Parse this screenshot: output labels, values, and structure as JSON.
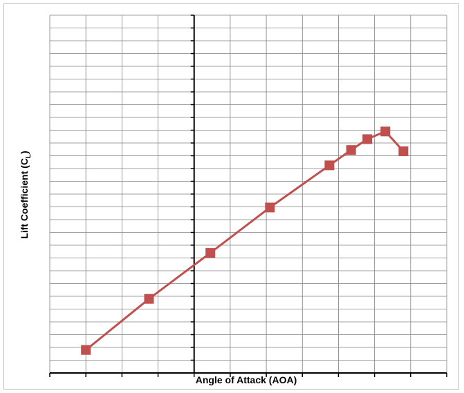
{
  "chart_data": {
    "type": "line",
    "title": "",
    "xlabel": "Angle of Attack (AOA)",
    "ylabel": "Lift Coefficient (C",
    "ylabel_subscript": "L",
    "ylabel_suffix": ")",
    "xlim": [
      -8,
      14
    ],
    "ylim": [
      -0.9,
      1.9
    ],
    "x_major_step": 2,
    "y_major_step": 0.1,
    "grid": true,
    "legend": "none",
    "series": [
      {
        "color": "#c0504d",
        "marker": "square",
        "points": [
          {
            "x": -6,
            "y": -0.72
          },
          {
            "x": -2.5,
            "y": -0.32
          },
          {
            "x": 0.9,
            "y": 0.04
          },
          {
            "x": 4.2,
            "y": 0.395
          },
          {
            "x": 7.5,
            "y": 0.725
          },
          {
            "x": 8.7,
            "y": 0.845
          },
          {
            "x": 9.6,
            "y": 0.93
          },
          {
            "x": 10.6,
            "y": 0.99
          },
          {
            "x": 11.6,
            "y": 0.835
          }
        ]
      }
    ]
  }
}
